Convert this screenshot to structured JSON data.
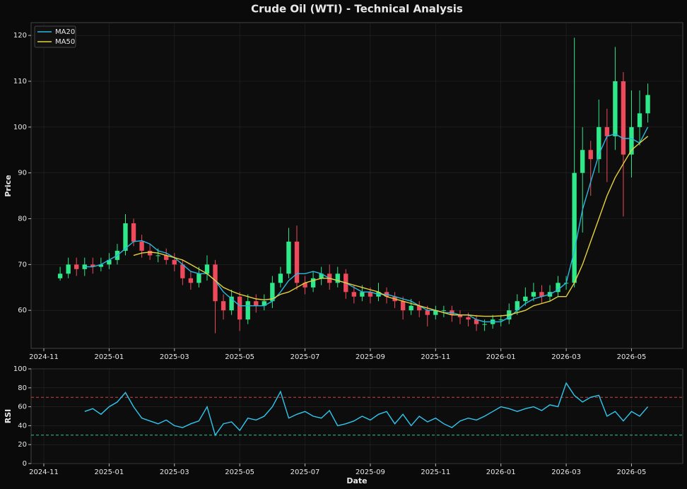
{
  "chart_data": [
    {
      "type": "candlestick",
      "title": "Crude Oil (WTI) - Technical Analysis",
      "y_label": "Price",
      "grid": true,
      "legend": "upper left",
      "up_color": "#2ee88a",
      "down_color": "#ee4a5c",
      "x": [
        0.5,
        0.75,
        1,
        1.25,
        1.5,
        1.75,
        2,
        2.25,
        2.5,
        2.75,
        3,
        3.25,
        3.5,
        3.75,
        4,
        4.25,
        4.5,
        4.75,
        5,
        5.25,
        5.5,
        5.75,
        6,
        6.25,
        6.5,
        6.75,
        7,
        7.25,
        7.5,
        7.75,
        8,
        8.25,
        8.5,
        8.75,
        9,
        9.25,
        9.5,
        9.75,
        10,
        10.25,
        10.5,
        10.75,
        11,
        11.25,
        11.5,
        11.75,
        12,
        12.25,
        12.5,
        12.75,
        13,
        13.25,
        13.5,
        13.75,
        14,
        14.25,
        14.5,
        14.75,
        15,
        15.25,
        15.5,
        15.75,
        16,
        16.25,
        16.5,
        16.75,
        17,
        17.25,
        17.5,
        17.75,
        18,
        18.25,
        18.5
      ],
      "open": [
        67,
        68,
        70,
        69,
        70,
        69.5,
        70,
        71,
        73,
        79,
        75,
        73,
        72,
        72,
        71,
        70,
        67,
        66,
        68,
        70,
        62,
        60,
        63,
        58,
        62,
        61,
        62,
        66,
        68,
        75,
        66,
        65,
        67,
        68,
        66,
        68,
        64,
        63,
        64,
        63,
        64,
        63,
        62,
        60,
        61,
        60,
        59,
        60,
        60,
        59,
        58.5,
        58,
        57,
        57,
        58,
        58,
        60,
        62,
        63,
        64,
        63,
        64,
        66,
        66,
        90,
        95,
        93,
        100,
        98,
        110,
        94,
        100,
        103
      ],
      "high": [
        69.5,
        71.5,
        71.5,
        71.5,
        71.5,
        71.5,
        72.5,
        74.5,
        81,
        80,
        76.5,
        74.5,
        73.5,
        73.5,
        72.5,
        71,
        68.5,
        69.5,
        72,
        71,
        63.5,
        64.5,
        64,
        63.5,
        63.5,
        63.5,
        67.5,
        69.5,
        78,
        78.5,
        67.5,
        68.5,
        69.5,
        70,
        69.5,
        69,
        65.5,
        65.5,
        65,
        66,
        65,
        64,
        63,
        62.5,
        62,
        61,
        61,
        61,
        61,
        60,
        59.5,
        59,
        58,
        59,
        59,
        61.5,
        63.5,
        65,
        66,
        65.5,
        65.5,
        67.5,
        67.5,
        119.5,
        100,
        97,
        106,
        104,
        117.5,
        112,
        108,
        108,
        109.5
      ],
      "low": [
        66.5,
        67,
        67.5,
        67.5,
        68,
        68.5,
        69,
        70,
        72,
        74,
        71.5,
        71,
        70.5,
        70,
        68.5,
        65.5,
        64.5,
        65,
        66.5,
        55,
        58,
        59,
        55.5,
        57,
        59.5,
        60,
        60.5,
        65,
        67,
        64.5,
        63.5,
        64,
        65.5,
        64.5,
        65,
        62.5,
        61.5,
        62,
        61.5,
        62,
        61.5,
        60.5,
        58,
        59,
        58.5,
        56.5,
        58,
        58.5,
        57.5,
        57,
        56.5,
        55.5,
        55.5,
        56,
        56.5,
        57,
        59,
        61,
        62,
        61.5,
        62,
        63,
        64.5,
        65,
        77,
        85,
        90,
        88,
        95,
        80.5,
        89,
        96,
        101
      ],
      "close": [
        68,
        70,
        69,
        70,
        69.5,
        70,
        71,
        73,
        79,
        75,
        73,
        72,
        72,
        71,
        70,
        67,
        66,
        68,
        70,
        62,
        60,
        63,
        58,
        62,
        61,
        62,
        66,
        68,
        75,
        66,
        65,
        67,
        68,
        66,
        68,
        64,
        63,
        64,
        63,
        64,
        63,
        62,
        60,
        61,
        60,
        59,
        60,
        60,
        59,
        58.5,
        58,
        57,
        57,
        58,
        58,
        60,
        62,
        63,
        64,
        63,
        64,
        66,
        66,
        90,
        95,
        93,
        100,
        98,
        110,
        94,
        100,
        103,
        107
      ],
      "series": [
        {
          "name": "MA20",
          "color": "#2bb8e0",
          "values": [
            null,
            null,
            null,
            69.5,
            69.5,
            70,
            71,
            72,
            73.5,
            75,
            75.2,
            74.5,
            73,
            72.5,
            71.5,
            70,
            68.5,
            68,
            68,
            66.5,
            64,
            62.5,
            61,
            61,
            61,
            61,
            62,
            64,
            66.5,
            68,
            68,
            68.5,
            68,
            67,
            66.5,
            66,
            65,
            64,
            64,
            63.5,
            63.5,
            63,
            62.5,
            62,
            61,
            60,
            60,
            59.5,
            59.5,
            59,
            59,
            58,
            57.5,
            57.5,
            57.5,
            58.5,
            60,
            61.5,
            62.5,
            63,
            63.5,
            64.5,
            66,
            73,
            82,
            88,
            94,
            98,
            98.5,
            97.5,
            97.5,
            96.5,
            100
          ]
        },
        {
          "name": "MA50",
          "color": "#e6d33a",
          "values": [
            null,
            null,
            null,
            null,
            null,
            null,
            null,
            null,
            null,
            72,
            72.5,
            72.7,
            72.5,
            72,
            71.5,
            71,
            70,
            69,
            68,
            66.5,
            65,
            64.2,
            63.5,
            63,
            62.5,
            62.3,
            62.5,
            63.5,
            64,
            65,
            66,
            66.5,
            67,
            67,
            66.5,
            66,
            65.5,
            65,
            64.5,
            64,
            63,
            62.5,
            62,
            61.5,
            61,
            60.5,
            60,
            59.5,
            59,
            59,
            59,
            58.8,
            58.7,
            58.7,
            58.8,
            59,
            59.5,
            60,
            61,
            61.5,
            62,
            63,
            63,
            66,
            70,
            75,
            80,
            85,
            89,
            92,
            95,
            96.5,
            98
          ]
        }
      ],
      "xlim": [
        -0.39,
        19.57
      ],
      "xticks": [
        {
          "value": 0,
          "label": "2024-11"
        },
        {
          "value": 2,
          "label": "2025-01"
        },
        {
          "value": 4,
          "label": "2025-03"
        },
        {
          "value": 6,
          "label": "2025-05"
        },
        {
          "value": 8,
          "label": "2025-07"
        },
        {
          "value": 10,
          "label": "2025-09"
        },
        {
          "value": 12,
          "label": "2025-11"
        },
        {
          "value": 14,
          "label": "2026-01"
        },
        {
          "value": 16,
          "label": "2026-03"
        },
        {
          "value": 18,
          "label": "2026-05"
        }
      ],
      "ylim": [
        51.7,
        122.8
      ],
      "yticks": [
        60,
        70,
        80,
        90,
        100,
        110,
        120
      ]
    },
    {
      "type": "line",
      "y_label": "RSI",
      "x_label": "Date",
      "grid": true,
      "x": [
        0.5,
        0.75,
        1,
        1.25,
        1.5,
        1.75,
        2,
        2.25,
        2.5,
        2.75,
        3,
        3.25,
        3.5,
        3.75,
        4,
        4.25,
        4.5,
        4.75,
        5,
        5.25,
        5.5,
        5.75,
        6,
        6.25,
        6.5,
        6.75,
        7,
        7.25,
        7.5,
        7.75,
        8,
        8.25,
        8.5,
        8.75,
        9,
        9.25,
        9.5,
        9.75,
        10,
        10.25,
        10.5,
        10.75,
        11,
        11.25,
        11.5,
        11.75,
        12,
        12.25,
        12.5,
        12.75,
        13,
        13.25,
        13.5,
        13.75,
        14,
        14.25,
        14.5,
        14.75,
        15,
        15.25,
        15.5,
        15.75,
        16,
        16.25,
        16.5,
        16.75,
        17,
        17.25,
        17.5,
        17.75,
        18,
        18.25,
        18.5
      ],
      "series": [
        {
          "name": "RSI",
          "color": "#2ec8ee",
          "values": [
            null,
            null,
            null,
            55,
            58,
            52,
            60,
            65,
            75,
            60,
            48,
            45,
            42,
            46,
            40,
            38,
            42,
            45,
            60,
            30,
            42,
            44,
            35,
            48,
            46,
            50,
            60,
            76,
            48,
            52,
            55,
            50,
            48,
            56,
            40,
            42,
            45,
            50,
            46,
            52,
            55,
            42,
            52,
            40,
            50,
            44,
            48,
            42,
            38,
            45,
            48,
            46,
            50,
            55,
            60,
            58,
            55,
            58,
            60,
            56,
            62,
            60,
            85,
            72,
            65,
            70,
            72,
            50,
            55,
            45,
            55,
            50,
            60
          ]
        }
      ],
      "hlines": [
        {
          "value": 70,
          "color": "#d94040"
        },
        {
          "value": 30,
          "color": "#2ec88a"
        }
      ],
      "xlim": [
        -0.39,
        19.57
      ],
      "xticks": [
        {
          "value": 0,
          "label": "2024-11"
        },
        {
          "value": 2,
          "label": "2025-01"
        },
        {
          "value": 4,
          "label": "2025-03"
        },
        {
          "value": 6,
          "label": "2025-05"
        },
        {
          "value": 8,
          "label": "2025-07"
        },
        {
          "value": 10,
          "label": "2025-09"
        },
        {
          "value": 12,
          "label": "2025-11"
        },
        {
          "value": 14,
          "label": "2026-01"
        },
        {
          "value": 16,
          "label": "2026-03"
        },
        {
          "value": 18,
          "label": "2026-05"
        }
      ],
      "ylim": [
        0,
        100
      ],
      "yticks": [
        0,
        20,
        40,
        60,
        80,
        100
      ]
    }
  ]
}
